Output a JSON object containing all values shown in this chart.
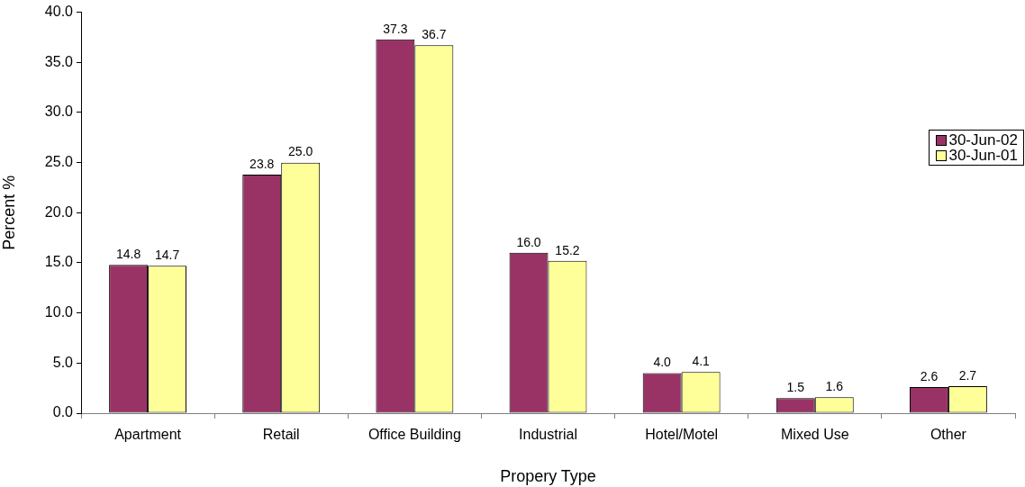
{
  "chart_data": {
    "type": "bar",
    "xlabel": "Propery Type",
    "ylabel": "Percent %",
    "categories": [
      "Apartment",
      "Retail",
      "Office Building",
      "Industrial",
      "Hotel/Motel",
      "Mixed Use",
      "Other"
    ],
    "series": [
      {
        "name": "30-Jun-02",
        "color": "#993366",
        "values": [
          14.8,
          23.8,
          37.3,
          16.0,
          4.0,
          1.5,
          2.6
        ],
        "value_labels": [
          "14.8",
          "23.8",
          "37.3",
          "16.0",
          "4.0",
          "1.5",
          "2.6"
        ]
      },
      {
        "name": "30-Jun-01",
        "color": "#ffff99",
        "values": [
          14.7,
          25.0,
          36.7,
          15.2,
          4.1,
          1.6,
          2.7
        ],
        "value_labels": [
          "14.7",
          "25.0",
          "36.7",
          "15.2",
          "4.1",
          "1.6",
          "2.7"
        ]
      }
    ],
    "ylim": [
      0,
      40
    ],
    "yticks": [
      {
        "value": 0,
        "label": "0.0"
      },
      {
        "value": 5,
        "label": "5.0"
      },
      {
        "value": 10,
        "label": "10.0"
      },
      {
        "value": 15,
        "label": "15.0"
      },
      {
        "value": 20,
        "label": "20.0"
      },
      {
        "value": 25,
        "label": "25.0"
      },
      {
        "value": 30,
        "label": "30.0"
      },
      {
        "value": 35,
        "label": "35.0"
      },
      {
        "value": 40,
        "label": "40.0"
      }
    ],
    "grid": false,
    "legend": "right"
  }
}
